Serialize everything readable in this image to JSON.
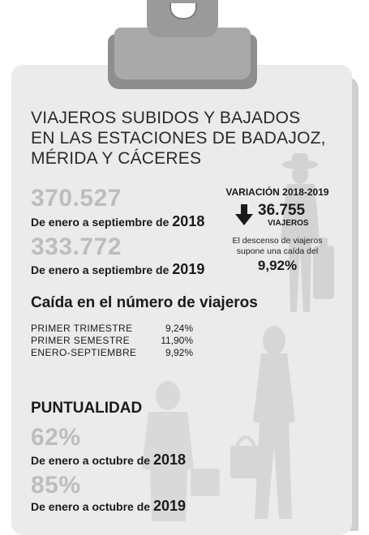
{
  "title_lines": [
    "VIAJEROS SUBIDOS Y BAJADOS",
    "EN LAS ESTACIONES DE BADAJOZ,",
    "MÉRIDA Y CÁCERES"
  ],
  "travelers": [
    {
      "value": "370.527",
      "caption_prefix": "De enero a septiembre de ",
      "year": "2018"
    },
    {
      "value": "333.772",
      "caption_prefix": "De enero a septiembre de ",
      "year": "2019"
    }
  ],
  "variation": {
    "title": "VARIACIÓN 2018-2019",
    "value": "36.755",
    "unit": "VIAJEROS",
    "desc_lines": [
      "El descenso de viajeros",
      "supone una caída del"
    ],
    "percent": "9,92%"
  },
  "drop_section": {
    "heading": "Caída en el número de viajeros",
    "rows": [
      {
        "label": "PRIMER TRIMESTRE",
        "value": "9,24%"
      },
      {
        "label": "PRIMER SEMESTRE",
        "value": "11,90%"
      },
      {
        "label": "ENERO-SEPTIEMBRE",
        "value": "9,92%"
      }
    ]
  },
  "punctuality": {
    "heading": "PUNTUALIDAD",
    "items": [
      {
        "value": "62%",
        "caption_prefix": "De enero a octubre de ",
        "year": "2018"
      },
      {
        "value": "85%",
        "caption_prefix": "De enero a octubre de ",
        "year": "2019"
      }
    ]
  },
  "colors": {
    "board": "#ebebeb",
    "clip": "#a9a9a9",
    "big_number": "#bdbdbd",
    "silhouette": "#d3d3d3"
  },
  "icons": {
    "variation": "arrow-down-icon"
  }
}
